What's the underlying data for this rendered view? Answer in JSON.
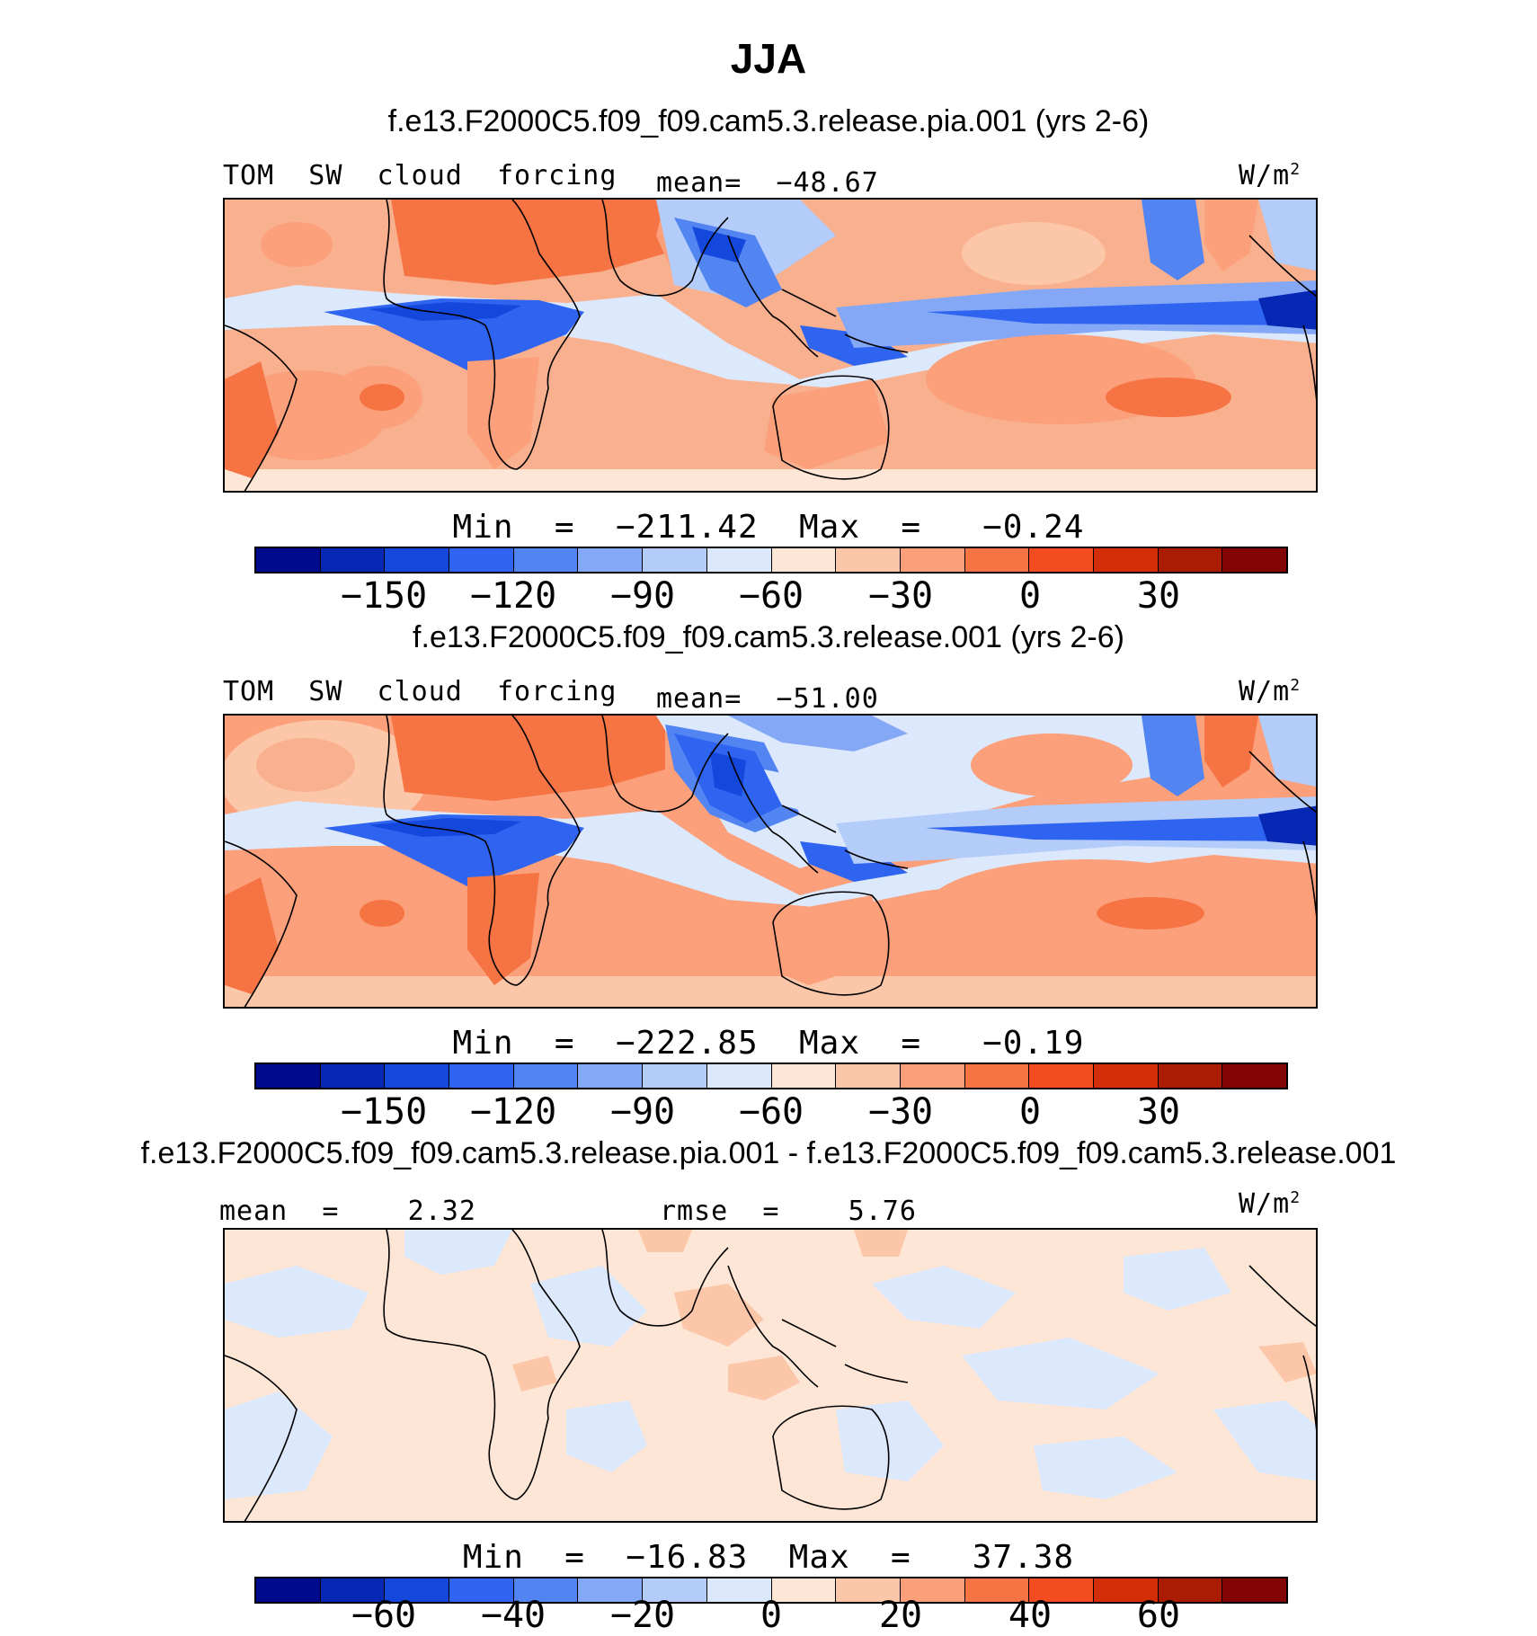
{
  "title": "JJA",
  "palette": [
    "#000a8c",
    "#0628b4",
    "#1448dc",
    "#2e64f0",
    "#5284f2",
    "#84a8f6",
    "#b4ccfa",
    "#dce8fc",
    "#fde6d6",
    "#fcc6a8",
    "#fba07a",
    "#f67444",
    "#f24c20",
    "#d42e08",
    "#aa1c04",
    "#820404"
  ],
  "colors": {
    "bg": "#ffffff",
    "coast": "#000000"
  },
  "panels": [
    {
      "case": "f.e13.F2000C5.f09_f09.cam5.3.release.pia.001 (yrs 2-6)",
      "left_label": "TOM  SW  cloud  forcing",
      "center_label": "mean=  −48.67",
      "units": "W/m",
      "units_sup": "2",
      "min_max": "Min  =  −211.42  Max  =   −0.24",
      "ticks": [
        "−150",
        "−120",
        "−90",
        "−60",
        "−30",
        "0",
        "30"
      ]
    },
    {
      "case": "f.e13.F2000C5.f09_f09.cam5.3.release.001 (yrs 2-6)",
      "left_label": "TOM  SW  cloud  forcing",
      "center_label": "mean=  −51.00",
      "units": "W/m",
      "units_sup": "2",
      "min_max": "Min  =  −222.85  Max  =   −0.19",
      "ticks": [
        "−150",
        "−120",
        "−90",
        "−60",
        "−30",
        "0",
        "30"
      ]
    },
    {
      "case": "f.e13.F2000C5.f09_f09.cam5.3.release.pia.001 - f.e13.F2000C5.f09_f09.cam5.3.release.001",
      "left_label": "mean  =    2.32",
      "center_label": "rmse  =    5.76",
      "units": "W/m",
      "units_sup": "2",
      "min_max": "Min  =  −16.83  Max  =   37.38",
      "ticks": [
        "−60",
        "−40",
        "−20",
        "0",
        "20",
        "40",
        "60"
      ]
    }
  ]
}
